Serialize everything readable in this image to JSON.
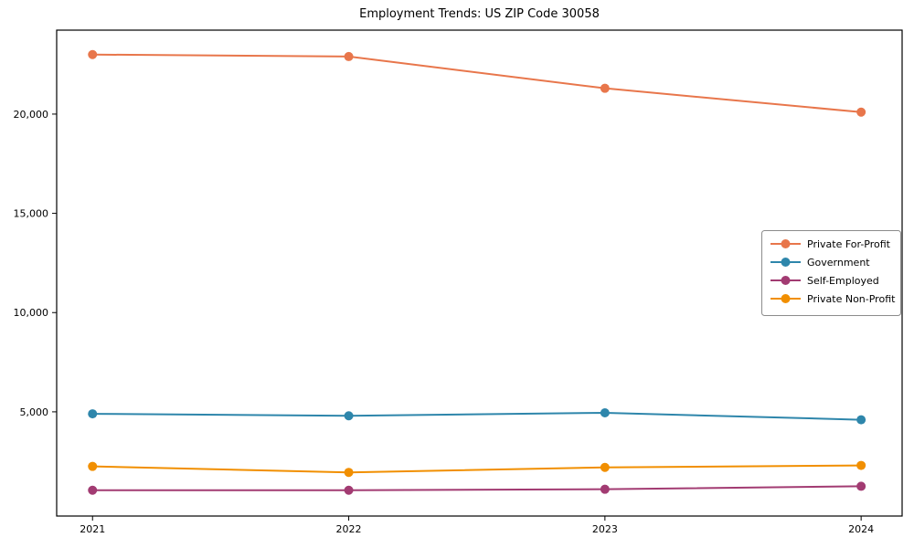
{
  "chart_data": {
    "type": "line",
    "title": "Employment Trends: US ZIP Code 30058",
    "xlabel": "",
    "ylabel": "",
    "x": [
      2021,
      2022,
      2023,
      2024
    ],
    "x_tick_labels": [
      "2021",
      "2022",
      "2023",
      "2024"
    ],
    "y_ticks": [
      {
        "value": 5000,
        "label": "5,000"
      },
      {
        "value": 10000,
        "label": "10,000"
      },
      {
        "value": 15000,
        "label": "15,000"
      },
      {
        "value": 20000,
        "label": "20,000"
      }
    ],
    "xlim": [
      2020.86,
      2024.16
    ],
    "ylim": [
      -250,
      24230
    ],
    "grid": false,
    "background": "#ffffff",
    "axis_color": "#000000",
    "legend": {
      "position": "center-right",
      "background": "#ffffff",
      "border_color": "#8c8c8c"
    },
    "series": [
      {
        "name": "Private For-Profit",
        "color": "#E8764B",
        "values": [
          23000,
          22900,
          21300,
          20100
        ]
      },
      {
        "name": "Government",
        "color": "#2E86AB",
        "values": [
          4900,
          4800,
          4950,
          4600
        ]
      },
      {
        "name": "Self-Employed",
        "color": "#A23B72",
        "values": [
          1050,
          1050,
          1100,
          1250
        ]
      },
      {
        "name": "Private Non-Profit",
        "color": "#F18F01",
        "values": [
          2250,
          1950,
          2200,
          2300
        ]
      }
    ]
  }
}
